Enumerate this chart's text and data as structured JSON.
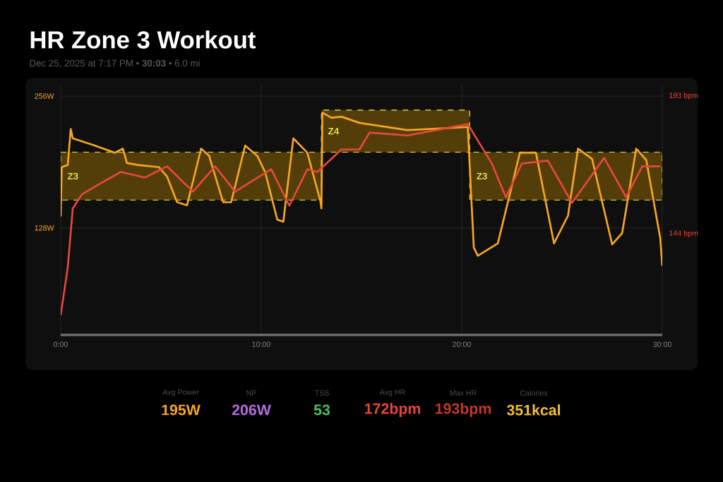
{
  "chart_data": [
    {
      "type": "line",
      "title": "HR Zone 3 Workout",
      "subtitle": "Dec 25, 2025 at 7:17 PM • **30:03** • 6.0 mi",
      "xlim": [
        0,
        30
      ],
      "xticks": [
        {
          "value": 0,
          "label": "0:00"
        },
        {
          "value": 10,
          "label": "10:00"
        },
        {
          "value": 20,
          "label": "20:00"
        },
        {
          "value": 30,
          "label": "30:00"
        }
      ],
      "ylim": [
        24,
        267
      ],
      "yticks": [
        {
          "value": 128,
          "label": "128W"
        },
        {
          "value": 256,
          "label": "256W"
        }
      ],
      "y2lim": [
        108,
        197
      ],
      "y2ticks": [
        {
          "value": 144,
          "label": "144 bpm"
        },
        {
          "value": 193,
          "label": "193 bpm"
        }
      ],
      "grid": true,
      "annotations": [
        "Z3",
        "Z4",
        "Z3"
      ],
      "series": [
        {
          "axis": "y2",
          "color": "#533e0a",
          "line_style": "dashed",
          "x": [
            0,
            13,
            13,
            20.4,
            20.4,
            30
          ],
          "values": [
            null,
            null,
            null,
            null,
            null,
            null
          ],
          "lower": [
            156,
            156,
            173,
            173,
            156,
            156
          ],
          "upper": [
            173,
            173,
            188,
            188,
            173,
            173
          ]
        },
        {
          "axis": "y2",
          "color": "#e5483a",
          "x": [
            0,
            0.35,
            0.6,
            1.05,
            2.0,
            3.0,
            4.2,
            5.3,
            6.6,
            7.7,
            8.7,
            10.5,
            11.4,
            12.3,
            12.8,
            14.0,
            14.9,
            15.4,
            17.3,
            20.3,
            21.5,
            22.2,
            23.0,
            24.3,
            25.5,
            27.1,
            28.2,
            29.0,
            29.9
          ],
          "values": [
            115,
            132,
            153,
            158,
            162,
            166,
            164,
            168,
            159,
            168,
            159,
            167,
            154,
            167,
            166,
            174,
            174,
            180,
            179,
            183,
            169,
            157,
            169,
            170,
            155,
            171,
            157,
            168,
            168
          ]
        },
        {
          "axis": "y",
          "color": "#f5a623",
          "x": [
            0,
            0.05,
            0.35,
            0.5,
            0.6,
            1.55,
            2.7,
            3.1,
            3.3,
            3.9,
            4.9,
            5.3,
            5.8,
            6.3,
            7.0,
            7.4,
            8.1,
            8.5,
            9.2,
            9.8,
            10.2,
            10.8,
            11.1,
            11.6,
            12.3,
            12.95,
            13.0,
            13.05,
            13.5,
            14.0,
            14.9,
            17.3,
            20.3,
            20.6,
            20.8,
            21.8,
            22.9,
            23.7,
            24.6,
            25.3,
            25.8,
            26.5,
            27.5,
            28.0,
            28.7,
            29.2,
            29.9,
            30
          ],
          "values": [
            139,
            187,
            189,
            224,
            215,
            209,
            201,
            205,
            191,
            189,
            187,
            178,
            153,
            150,
            205,
            198,
            153,
            153,
            208,
            198,
            182,
            136,
            134,
            215,
            201,
            154,
            147,
            240,
            235,
            236,
            230,
            223,
            226,
            109,
            101,
            113,
            201,
            201,
            113,
            140,
            205,
            195,
            112,
            123,
            205,
            194,
            118,
            91
          ]
        }
      ]
    },
    {
      "type": "other",
      "categories": [
        "Avg Power",
        "NP",
        "TSS",
        "Avg HR",
        "Max HR",
        "Calories"
      ],
      "value_labels": [
        "195W",
        "206W",
        "53",
        "172bpm",
        "193bpm",
        "351kcal"
      ],
      "colors": [
        "#f5a623",
        "#b36ee0",
        "#4cbf5a",
        "#e8453c",
        "#c0392b",
        "#f2c12e"
      ]
    }
  ]
}
